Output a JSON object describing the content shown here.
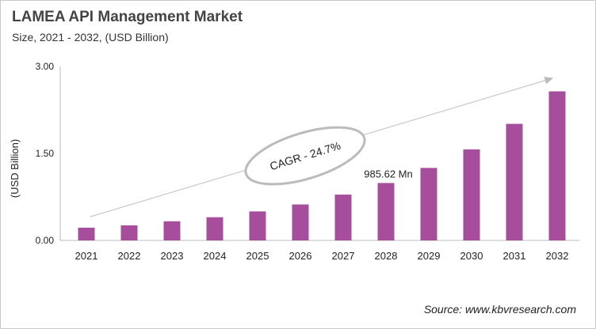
{
  "chart_data": {
    "type": "bar",
    "title": "LAMEA API Management Market",
    "subtitle": "Size, 2021 - 2032, (USD Billion)",
    "ylabel": "(USD Billion)",
    "xlabel": "",
    "categories": [
      "2021",
      "2022",
      "2023",
      "2024",
      "2025",
      "2026",
      "2027",
      "2028",
      "2029",
      "2030",
      "2031",
      "2032"
    ],
    "values": [
      0.22,
      0.26,
      0.33,
      0.4,
      0.5,
      0.62,
      0.79,
      0.99,
      1.25,
      1.57,
      2.01,
      2.57
    ],
    "ylim": [
      0,
      3
    ],
    "yticks": [
      "0.00",
      "1.50",
      "3.00"
    ],
    "grid": false,
    "bar_color": "#a64d9c",
    "data_label": {
      "category": "2028",
      "text": "985.62 Mn"
    },
    "annotation": "CAGR - 24.7%",
    "source": "Source: www.kbvresearch.com"
  }
}
